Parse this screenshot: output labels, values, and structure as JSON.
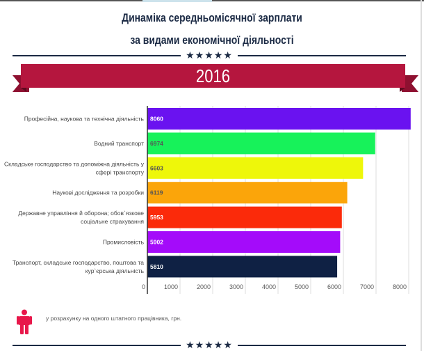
{
  "header": {
    "title_line1": "Динаміка середньомісячної зарплати",
    "title_line2": "за видами економічної діяльності",
    "stars": "★★★★★",
    "year": "2016"
  },
  "footer": {
    "note": "у розрахунку на одного штатного працівника, грн.",
    "stars": "★★★★★",
    "icon": "person-icon",
    "icon_color": "#e8174a"
  },
  "chart_data": {
    "type": "bar",
    "orientation": "horizontal",
    "title": "Динаміка середньомісячної зарплати за видами економічної діяльності",
    "subtitle": "2016",
    "xlabel": "",
    "ylabel": "",
    "xlim": [
      0,
      8000
    ],
    "xticks": [
      "0",
      "1000",
      "2000",
      "3000",
      "4000",
      "5000",
      "6000",
      "7000",
      "8000"
    ],
    "grid": true,
    "categories": [
      [
        "Професійна, наукова та технічна діяльність"
      ],
      [
        "Водний транспорт"
      ],
      [
        "Складське господарство та допоміжна діяльність у",
        "сфері транспорту"
      ],
      [
        "Наукові дослідження та розробки"
      ],
      [
        "Державне управління й оборона; обов`язкове",
        "соціальне страхування"
      ],
      [
        "Промисловість"
      ],
      [
        "Транспорт, складське господарство, поштова та",
        "кур`єрська діяльність"
      ]
    ],
    "values": [
      8060,
      6974,
      6603,
      6119,
      5953,
      5902,
      5810
    ],
    "value_labels": [
      "8060",
      "6974",
      "6603",
      "6119",
      "5953",
      "5902",
      "5810"
    ],
    "colors": [
      "#6a12f0",
      "#17f25a",
      "#eef70a",
      "#fba50a",
      "#fb2a0a",
      "#a40bfa",
      "#0f2144"
    ],
    "label_colors": [
      "#ffffff",
      "#555555",
      "#555555",
      "#555555",
      "#ffffff",
      "#ffffff",
      "#ffffff"
    ]
  }
}
